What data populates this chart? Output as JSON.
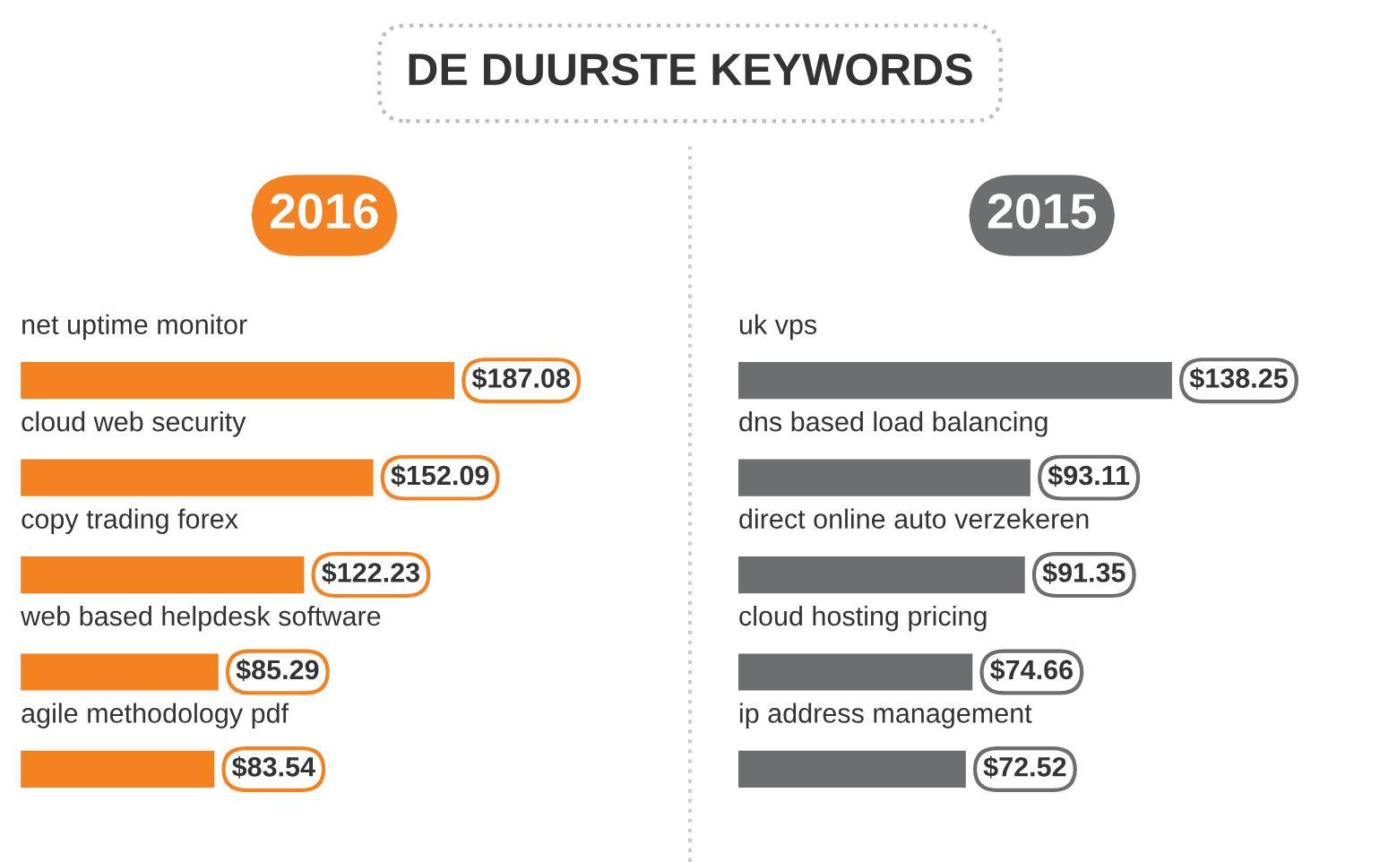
{
  "chart_data": [
    {
      "type": "bar",
      "orientation": "horizontal",
      "title": "2016",
      "annotations": [
        "DE DUURSTE KEYWORDS"
      ],
      "categories": [
        "net uptime monitor",
        "cloud web security",
        "copy trading forex",
        "web based helpdesk software",
        "agile methodology pdf"
      ],
      "values": [
        187.08,
        152.09,
        122.23,
        85.29,
        83.54
      ],
      "value_labels": [
        "$187.08",
        "$152.09",
        "$122.23",
        "$85.29",
        "$83.54"
      ],
      "color": "#f58220"
    },
    {
      "type": "bar",
      "orientation": "horizontal",
      "title": "2015",
      "categories": [
        "uk vps",
        "dns based load balancing",
        "direct online auto verzekeren",
        "cloud hosting pricing",
        "ip address management"
      ],
      "values": [
        138.25,
        93.11,
        91.35,
        74.66,
        72.52
      ],
      "value_labels": [
        "$138.25",
        "$93.11",
        "$91.35",
        "$74.66",
        "$72.52"
      ],
      "color": "#6d6e70"
    }
  ]
}
